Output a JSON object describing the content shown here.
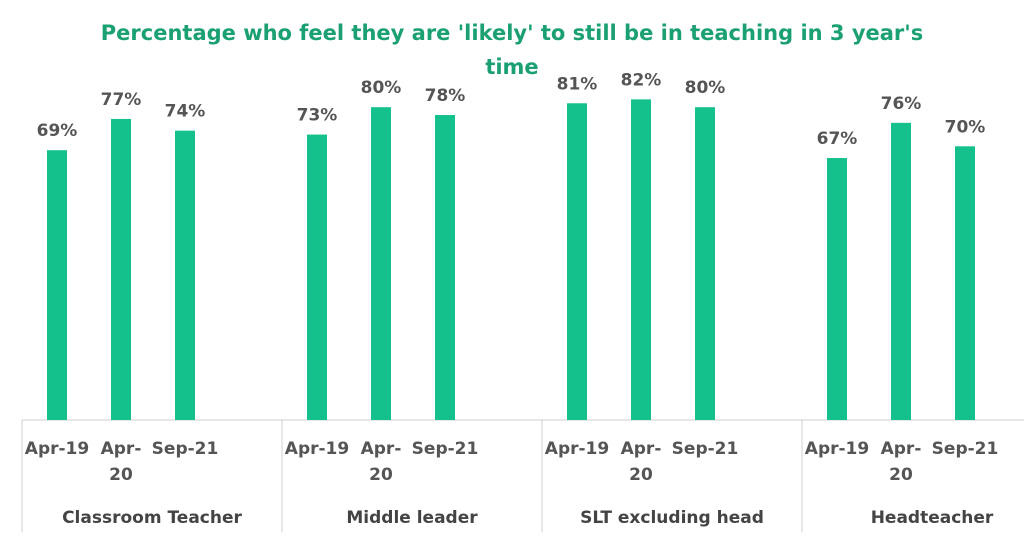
{
  "chart_data": {
    "type": "bar",
    "title": "Percentage who feel they are 'likely' to still be in teaching in 3 year's time",
    "groups": [
      {
        "name": "Classroom Teacher",
        "categories": [
          [
            "Apr-19"
          ],
          [
            "Apr-",
            "20"
          ],
          [
            "Sep-21"
          ]
        ],
        "values": [
          69,
          77,
          74
        ],
        "labels": [
          "69%",
          "77%",
          "74%"
        ]
      },
      {
        "name": "Middle leader",
        "categories": [
          [
            "Apr-19"
          ],
          [
            "Apr-",
            "20"
          ],
          [
            "Sep-21"
          ]
        ],
        "values": [
          73,
          80,
          78
        ],
        "labels": [
          "73%",
          "80%",
          "78%"
        ]
      },
      {
        "name": "SLT excluding head",
        "categories": [
          [
            "Apr-19"
          ],
          [
            "Apr-",
            "20"
          ],
          [
            "Sep-21"
          ]
        ],
        "values": [
          81,
          82,
          80
        ],
        "labels": [
          "81%",
          "82%",
          "80%"
        ]
      },
      {
        "name": "Headteacher",
        "categories": [
          [
            "Apr-19"
          ],
          [
            "Apr-",
            "20"
          ],
          [
            "Sep-21"
          ]
        ],
        "values": [
          67,
          76,
          70
        ],
        "labels": [
          "67%",
          "76%",
          "70%"
        ]
      }
    ],
    "ylim": [
      0,
      100
    ],
    "colors": {
      "bar": "#14c08b",
      "title": "#1aa071",
      "text": "#555555",
      "axis": "#cfcfcf"
    }
  }
}
